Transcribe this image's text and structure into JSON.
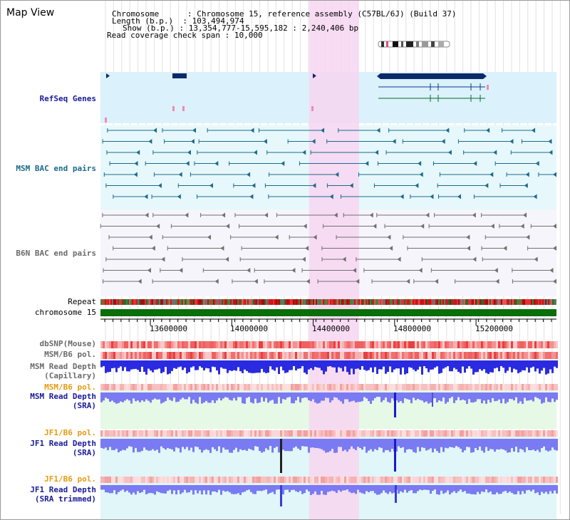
{
  "view": {
    "title": "Map View"
  },
  "header": {
    "chromosome_key": "Chromosome",
    "chromosome_value": "Chromosome 15, reference assembly (C57BL/6J) (Build 37)",
    "length_key": "Length (b.p.)",
    "length_value": "103,494,974",
    "show_key": "Show (b.p.)",
    "show_value": "13,354,777-15,595,182 : 2,240,406 bp",
    "coverage_key": "Read coverage check span",
    "coverage_value": "10,000"
  },
  "tracks": {
    "refseq": "RefSeq Genes",
    "msm_bac": "MSM BAC end pairs",
    "b6n_bac": "B6N BAC end pairs",
    "repeat": "Repeat",
    "chromosome": "chromosome 15",
    "dbsnp": "dbSNP(Mouse)",
    "msm_b6_pol_1": "MSM/B6 pol.",
    "msm_depth_cap_1": "MSM Read Depth",
    "msm_depth_cap_2": "(Capillary)",
    "msm_b6_pol_2": "MSM/B6 pol.",
    "msm_depth_sra_1": "MSM Read Depth",
    "msm_depth_sra_2": "(SRA)",
    "jf1_b6_pol_1": "JF1/B6 pol.",
    "jf1_depth_sra_1": "JF1 Read Depth",
    "jf1_depth_sra_2": "(SRA)",
    "jf1_b6_pol_2": "JF1/B6 pol.",
    "jf1_depth_trim_1": "JF1 Read Depth",
    "jf1_depth_trim_2": "(SRA trimmed)"
  },
  "axis": {
    "ticks": [
      "13600000",
      "14000000",
      "14400000",
      "14800000",
      "15200000"
    ],
    "tick_values": [
      13600000,
      14000000,
      14400000,
      14800000,
      15200000
    ],
    "range": [
      13354777,
      15595182
    ]
  },
  "highlight": {
    "start": 14380000,
    "end": 14625000
  },
  "colors": {
    "refseq_bg": "#dbf1fb",
    "msm_bg": "#e6f8fb",
    "b6n_bg": "#f5f5fb",
    "highlight": "#f7d6f1",
    "chromosome_bar": "#0a6e0a",
    "msm_feature": "#1e6a8c",
    "b6n_feature": "#707070",
    "depth_blue": "#2a2ae0",
    "depth_light": "#7a7af2"
  }
}
